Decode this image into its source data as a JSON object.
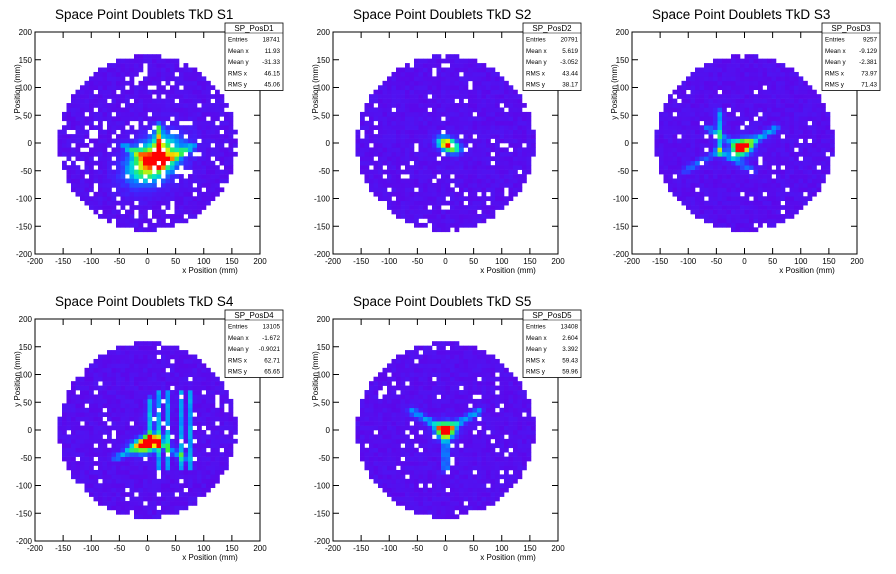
{
  "chart_data": [
    {
      "type": "heatmap",
      "title": "Space Point Doublets TkD S1",
      "xlabel": "x Position (mm)",
      "ylabel": "y Position (mm)",
      "xlim": [
        -200,
        200
      ],
      "ylim": [
        -200,
        200
      ],
      "xticks": [
        -200,
        -150,
        -100,
        -50,
        0,
        50,
        100,
        150,
        200
      ],
      "yticks": [
        -200,
        -150,
        -100,
        -50,
        0,
        50,
        100,
        150,
        200
      ],
      "stats": {
        "name": "SP_PosD1",
        "rows": [
          {
            "label": "Entries",
            "value": "18741"
          },
          {
            "label": "Mean x",
            "value": "11.93"
          },
          {
            "label": "Mean y",
            "value": "-31.33"
          },
          {
            "label": "RMS x",
            "value": "46.15"
          },
          {
            "label": "RMS y",
            "value": "45.06"
          }
        ]
      },
      "pattern": {
        "cx": 12,
        "cy": -30,
        "sx": 34,
        "sy": 22,
        "angle": 35,
        "peak": 1.0,
        "spokes": [
          [
            20,
            -40,
            90,
            1.3
          ],
          [
            20,
            -40,
            150,
            0.9
          ],
          [
            20,
            -40,
            30,
            0.9
          ]
        ],
        "holes": 0.12
      }
    },
    {
      "type": "heatmap",
      "title": "Space Point Doublets TkD S2",
      "xlabel": "x Position (mm)",
      "ylabel": "y Position (mm)",
      "xlim": [
        -200,
        200
      ],
      "ylim": [
        -200,
        200
      ],
      "xticks": [
        -200,
        -150,
        -100,
        -50,
        0,
        50,
        100,
        150,
        200
      ],
      "yticks": [
        -200,
        -150,
        -100,
        -50,
        0,
        50,
        100,
        150,
        200
      ],
      "stats": {
        "name": "SP_PosD2",
        "rows": [
          {
            "label": "Entries",
            "value": "20791"
          },
          {
            "label": "Mean x",
            "value": "5.619"
          },
          {
            "label": "Mean y",
            "value": "-3.052"
          },
          {
            "label": "RMS x",
            "value": "43.44"
          },
          {
            "label": "RMS y",
            "value": "38.17"
          }
        ]
      },
      "pattern": {
        "cx": 5,
        "cy": -3,
        "sx": 14,
        "sy": 8,
        "angle": -25,
        "peak": 1.0,
        "spokes": [],
        "holes": 0.07
      }
    },
    {
      "type": "heatmap",
      "title": "Space Point Doublets TkD S3",
      "xlabel": "x Position (mm)",
      "ylabel": "y Position (mm)",
      "xlim": [
        -200,
        200
      ],
      "ylim": [
        -200,
        200
      ],
      "xticks": [
        -200,
        -150,
        -100,
        -50,
        0,
        50,
        100,
        150,
        200
      ],
      "yticks": [
        -200,
        -150,
        -100,
        -50,
        0,
        50,
        100,
        150,
        200
      ],
      "stats": {
        "name": "SP_PosD3",
        "rows": [
          {
            "label": "Entries",
            "value": "9257"
          },
          {
            "label": "Mean x",
            "value": "-9.129"
          },
          {
            "label": "Mean y",
            "value": "-2.381"
          },
          {
            "label": "RMS x",
            "value": "73.97"
          },
          {
            "label": "RMS y",
            "value": "71.43"
          }
        ]
      },
      "pattern": {
        "cx": -5,
        "cy": -8,
        "sx": 14,
        "sy": 10,
        "angle": 30,
        "peak": 0.95,
        "spokes": [
          [
            -5,
            -8,
            30,
            0.9
          ],
          [
            -5,
            -8,
            150,
            0.7
          ],
          [
            -45,
            -15,
            90,
            0.9
          ],
          [
            -45,
            -15,
            210,
            0.6
          ],
          [
            -45,
            -15,
            330,
            0.6
          ]
        ],
        "holes": 0.04
      }
    },
    {
      "type": "heatmap",
      "title": "Space Point Doublets TkD S4",
      "xlabel": "x Position (mm)",
      "ylabel": "y Position (mm)",
      "xlim": [
        -200,
        200
      ],
      "ylim": [
        -200,
        200
      ],
      "xticks": [
        -200,
        -150,
        -100,
        -50,
        0,
        50,
        100,
        150,
        200
      ],
      "yticks": [
        -200,
        -150,
        -100,
        -50,
        0,
        50,
        100,
        150,
        200
      ],
      "stats": {
        "name": "SP_PosD4",
        "rows": [
          {
            "label": "Entries",
            "value": "13105"
          },
          {
            "label": "Mean x",
            "value": "-1.672"
          },
          {
            "label": "Mean y",
            "value": "-0.9021"
          },
          {
            "label": "RMS x",
            "value": "62.71"
          },
          {
            "label": "RMS y",
            "value": "65.65"
          }
        ]
      },
      "pattern": {
        "cx": 0,
        "cy": -25,
        "sx": 18,
        "sy": 10,
        "angle": 20,
        "peak": 1.0,
        "spokes": [
          [
            5,
            -15,
            90,
            1.0
          ],
          [
            5,
            -15,
            210,
            0.8
          ],
          [
            5,
            -15,
            330,
            0.8
          ]
        ],
        "bars": [
          18,
          38,
          62,
          78
        ],
        "holes": 0.05
      }
    },
    {
      "type": "heatmap",
      "title": "Space Point Doublets TkD S5",
      "xlabel": "x Position (mm)",
      "ylabel": "y Position (mm)",
      "xlim": [
        -200,
        200
      ],
      "ylim": [
        -200,
        200
      ],
      "xticks": [
        -200,
        -150,
        -100,
        -50,
        0,
        50,
        100,
        150,
        200
      ],
      "yticks": [
        -200,
        -150,
        -100,
        -50,
        0,
        50,
        100,
        150,
        200
      ],
      "stats": {
        "name": "SP_PosD5",
        "rows": [
          {
            "label": "Entries",
            "value": "13408"
          },
          {
            "label": "Mean x",
            "value": "2.604"
          },
          {
            "label": "Mean y",
            "value": "3.392"
          },
          {
            "label": "RMS x",
            "value": "59.43"
          },
          {
            "label": "RMS y",
            "value": "59.96"
          }
        ]
      },
      "pattern": {
        "cx": 0,
        "cy": 0,
        "sx": 12,
        "sy": 10,
        "angle": 0,
        "peak": 1.0,
        "spokes": [
          [
            0,
            0,
            30,
            0.9
          ],
          [
            0,
            0,
            150,
            0.9
          ],
          [
            0,
            0,
            270,
            0.9
          ]
        ],
        "holes": 0.05
      }
    }
  ]
}
